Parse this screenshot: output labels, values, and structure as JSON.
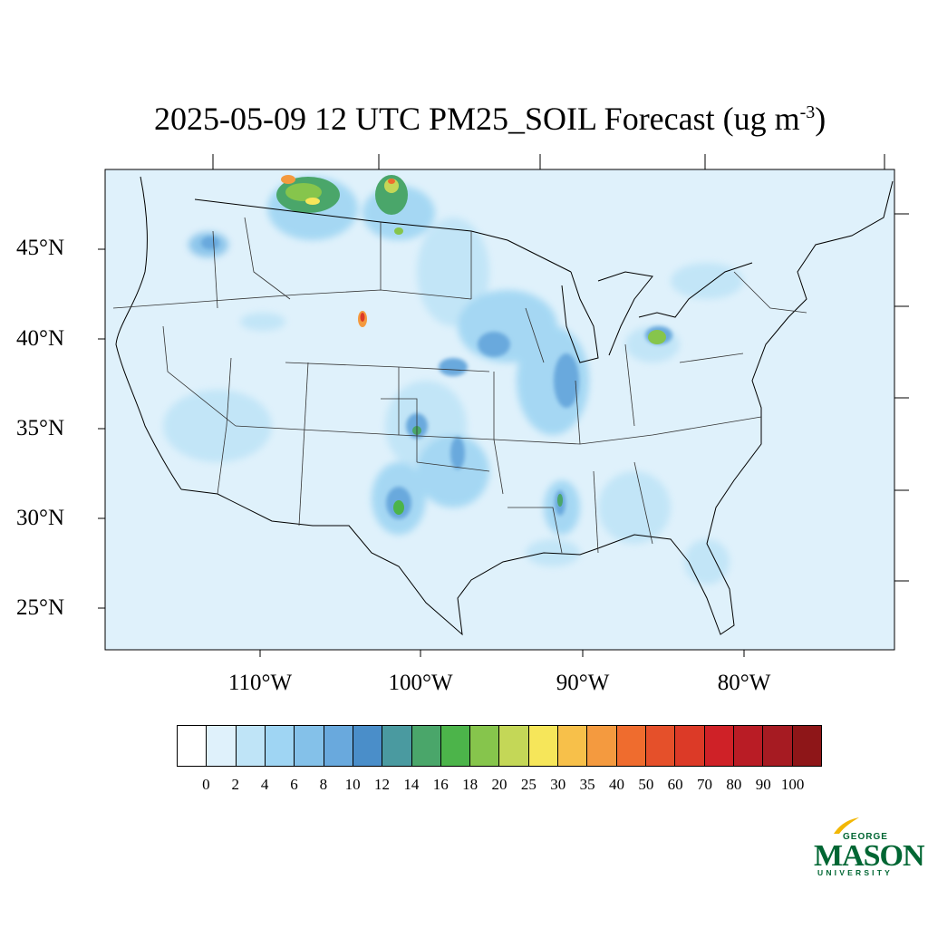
{
  "title": {
    "main": "2025-05-09 12 UTC PM25_SOIL Forecast (ug m",
    "superscript": "-3",
    "close": ")"
  },
  "map": {
    "region": "Continental United States",
    "lat_ticks": [
      "45°N",
      "40°N",
      "35°N",
      "30°N",
      "25°N"
    ],
    "lon_ticks": [
      "110°W",
      "100°W",
      "90°W",
      "80°W"
    ],
    "background_color": "#dff1fb",
    "hotspots": [
      {
        "label": "Saskatchewan/Montana border",
        "level": 30
      },
      {
        "label": "Northern Plains (ND)",
        "level": 25
      },
      {
        "label": "Northeast Colorado",
        "level": 40
      },
      {
        "label": "Southeast New Mexico / West Texas",
        "level": 16
      },
      {
        "label": "Lake Erie / Ohio",
        "level": 20
      },
      {
        "label": "Mississippi Delta",
        "level": 14
      },
      {
        "label": "Iowa / Illinois",
        "level": 10
      }
    ]
  },
  "colorbar": {
    "levels": [
      "0",
      "2",
      "4",
      "6",
      "8",
      "10",
      "12",
      "14",
      "16",
      "18",
      "20",
      "25",
      "30",
      "35",
      "40",
      "50",
      "60",
      "70",
      "80",
      "90",
      "100"
    ],
    "colors": [
      "#ffffff",
      "#dff1fb",
      "#bfe4f7",
      "#9fd5f3",
      "#84c1e9",
      "#69a9dd",
      "#4a8ec9",
      "#4a9aa0",
      "#4aa66a",
      "#4cb44a",
      "#86c54c",
      "#c4d757",
      "#f6e65a",
      "#f7c04a",
      "#f49a3f",
      "#ef6c2e",
      "#e5502a",
      "#dc3a27",
      "#cf2127",
      "#b91c25",
      "#a61b22",
      "#8e1618"
    ]
  },
  "logo": {
    "line1": "GEORGE",
    "line2": "MASON",
    "line3": "UNIVERSITY"
  }
}
